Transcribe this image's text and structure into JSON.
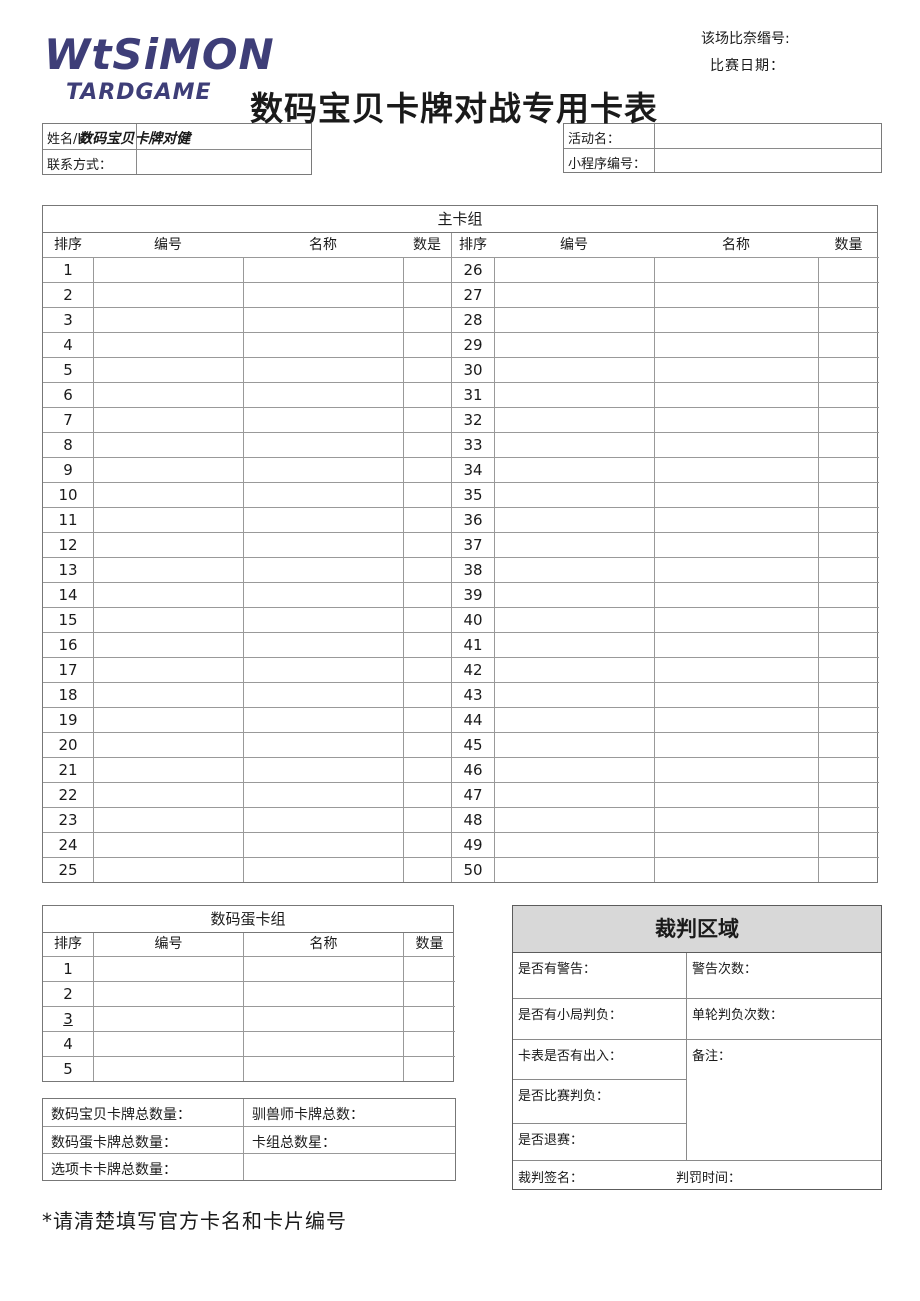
{
  "page": {
    "logo_line1": "WtSiMON",
    "logo_line2": "TARDGAME",
    "title": "数码宝贝卡牌对战专用卡表",
    "match_no_label": "该场比奈缗号:",
    "match_date_label": "比赛日期：",
    "footer_note": "*请清楚填写官方卡名和卡片编号",
    "accent_color": "#3e3e78"
  },
  "player_info": {
    "name_label": "姓名/ID",
    "name_overlay": "数码宝贝卡牌对健",
    "contact_label": "联系方式：",
    "event_label": "活动名：",
    "program_label": "小程序编号："
  },
  "main_deck": {
    "title": "主卡组",
    "headers_left": [
      "排序",
      "编号",
      "名称",
      "数是"
    ],
    "headers_right": [
      "排序",
      "编号",
      "名称",
      "数量"
    ],
    "rows_left": [
      "1",
      "2",
      "3",
      "4",
      "5",
      "6",
      "7",
      "8",
      "9",
      "10",
      "11",
      "12",
      "13",
      "14",
      "15",
      "16",
      "17",
      "18",
      "19",
      "20",
      "21",
      "22",
      "23",
      "24",
      "25"
    ],
    "rows_right": [
      "26",
      "27",
      "28",
      "29",
      "30",
      "31",
      "32",
      "33",
      "34",
      "35",
      "36",
      "37",
      "38",
      "39",
      "40",
      "41",
      "42",
      "43",
      "44",
      "45",
      "46",
      "47",
      "48",
      "49",
      "50"
    ]
  },
  "egg_deck": {
    "title": "数码蛋卡组",
    "headers": [
      "排序",
      "编号",
      "名称",
      "数量"
    ],
    "rows": [
      "1",
      "2",
      "3",
      "4",
      "5"
    ],
    "underlined_row": "3"
  },
  "totals": {
    "rows": [
      [
        "数码宝贝卡牌总数量：",
        "驯兽师卡牌总数："
      ],
      [
        "数码蛋卡牌总数量：",
        "卡组总数星："
      ],
      [
        "选项卡卡牌总数量：",
        ""
      ]
    ]
  },
  "judge": {
    "title": "裁判区域",
    "header_bg": "#d8d8d8",
    "row1_left": "是否有警告：",
    "row1_right": "警告次数：",
    "row2_left": "是否有小局判负：",
    "row2_right": "单轮判负次数：",
    "row3_left": "卡表是否有出入：",
    "row4_left": "是否比赛判负：",
    "row5_left": "是否退赛：",
    "notes_label": "备注：",
    "sign_label": "裁判签名：",
    "time_label": "判罚时间："
  }
}
